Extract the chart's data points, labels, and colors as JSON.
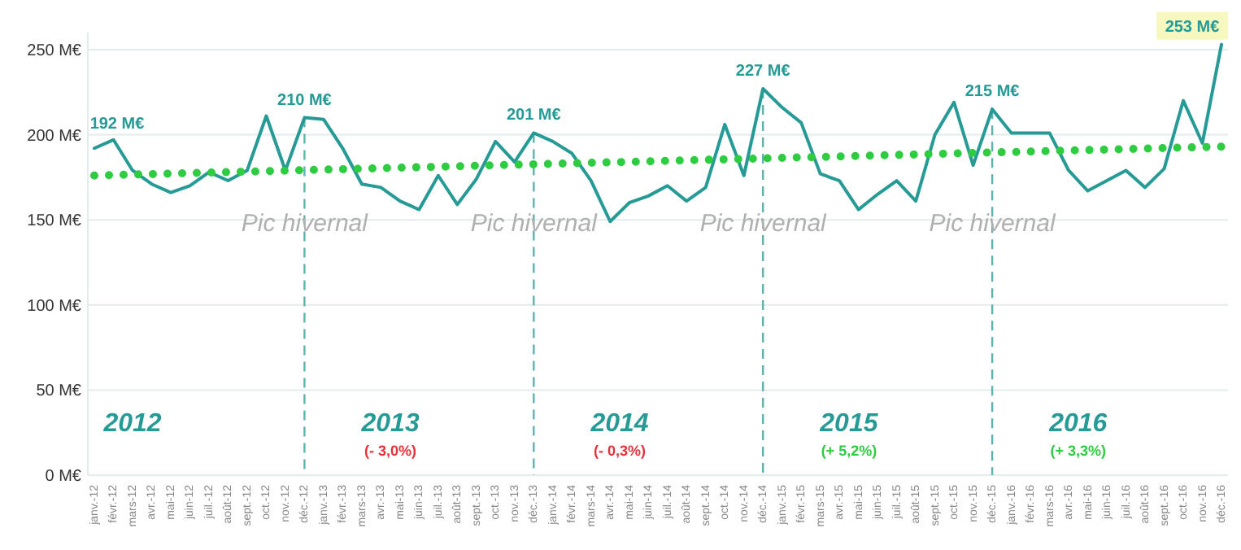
{
  "chart_data": {
    "type": "line",
    "categories": [
      "janv.-12",
      "févr.-12",
      "mars-12",
      "avr.-12",
      "mai-12",
      "juin-12",
      "juil.-12",
      "août-12",
      "sept.-12",
      "oct.-12",
      "nov.-12",
      "déc.-12",
      "janv.-13",
      "févr.-13",
      "mars-13",
      "avr.-13",
      "mai-13",
      "juin-13",
      "juil.-13",
      "août-13",
      "sept.-13",
      "oct.-13",
      "nov.-13",
      "déc.-13",
      "janv.-14",
      "févr.-14",
      "mars-14",
      "avr.-14",
      "mai-14",
      "juin-14",
      "juil.-14",
      "août-14",
      "sept.-14",
      "oct.-14",
      "nov.-14",
      "déc.-14",
      "janv.-15",
      "févr.-15",
      "mars-15",
      "avr.-15",
      "mai-15",
      "juin-15",
      "juil.-15",
      "août-15",
      "sept.-15",
      "oct.-15",
      "nov.-15",
      "déc.-15",
      "janv.-16",
      "févr.-16",
      "mars-16",
      "avr.-16",
      "mai-16",
      "juin-16",
      "juil.-16",
      "août-16",
      "sept.-16",
      "oct.-16",
      "nov.-16",
      "déc.-16"
    ],
    "series": [
      {
        "color": "#269b96",
        "values": [
          192,
          197,
          179,
          171,
          166,
          170,
          178,
          173,
          179,
          211,
          179,
          210,
          209,
          192,
          171,
          169,
          161,
          156,
          176,
          159,
          174,
          196,
          184,
          201,
          196,
          189,
          173,
          149,
          160,
          164,
          170,
          161,
          169,
          206,
          176,
          227,
          216,
          207,
          177,
          173,
          156,
          165,
          173,
          161,
          200,
          219,
          182,
          215,
          201,
          201,
          201,
          179,
          167,
          173,
          179,
          169,
          180,
          220,
          195,
          253
        ],
        "value_labels": [
          "192 M€",
          null,
          null,
          null,
          null,
          null,
          null,
          null,
          null,
          null,
          null,
          "210 M€",
          null,
          null,
          null,
          null,
          null,
          null,
          null,
          null,
          null,
          null,
          null,
          "201 M€",
          null,
          null,
          null,
          null,
          null,
          null,
          null,
          null,
          null,
          null,
          null,
          "227 M€",
          null,
          null,
          null,
          null,
          null,
          null,
          null,
          null,
          null,
          null,
          null,
          "215 M€",
          null,
          null,
          null,
          null,
          null,
          null,
          null,
          null,
          null,
          null,
          null,
          "253 M€"
        ]
      },
      {
        "type": "line",
        "color": "#2ecc40",
        "line_style": "dotted",
        "x": [
          "janv.-12",
          "déc.-16"
        ],
        "values": [
          176,
          193
        ]
      }
    ],
    "ylim": [
      0,
      260
    ],
    "yticks": [
      {
        "value": 0,
        "label": "0 M€"
      },
      {
        "value": 50,
        "label": "50 M€"
      },
      {
        "value": 100,
        "label": "100 M€"
      },
      {
        "value": 150,
        "label": "150 M€"
      },
      {
        "value": 200,
        "label": "200 M€"
      },
      {
        "value": 250,
        "label": "250 M€"
      }
    ],
    "grid": "y",
    "marker": "none",
    "ref_lines": [
      {
        "axis": "x",
        "value": "déc.-12",
        "label": "Pic hivernal",
        "color": "#5fb3ae",
        "line_style": "dashed"
      },
      {
        "axis": "x",
        "value": "déc.-13",
        "label": "Pic hivernal",
        "color": "#5fb3ae",
        "line_style": "dashed"
      },
      {
        "axis": "x",
        "value": "déc.-14",
        "label": "Pic hivernal",
        "color": "#5fb3ae",
        "line_style": "dashed"
      },
      {
        "axis": "x",
        "value": "déc.-15",
        "label": "Pic hivernal",
        "color": "#5fb3ae",
        "line_style": "dashed"
      }
    ],
    "annotations": [
      "2012",
      "2013",
      "(- 3,0%)",
      "2014",
      "(- 0,3%)",
      "2015",
      "(+ 5,2%)",
      "2016",
      "(+ 3,3%)"
    ]
  }
}
